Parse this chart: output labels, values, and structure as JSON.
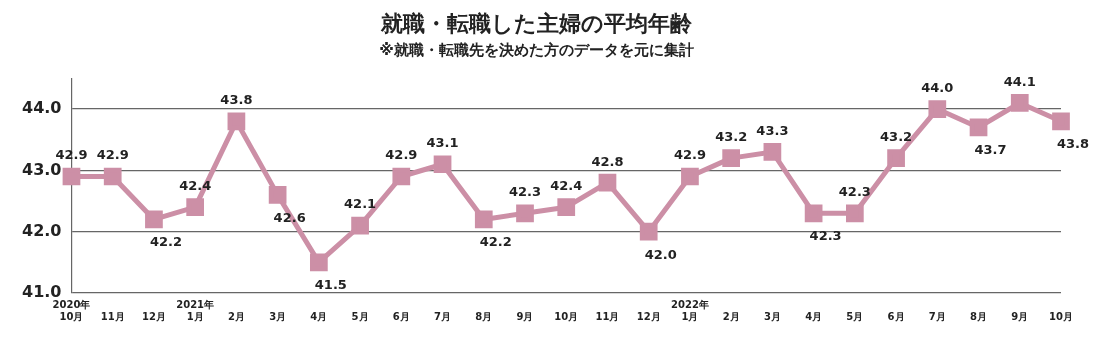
{
  "chart_data": {
    "type": "line",
    "title": "就職・転職した主婦の平均年齢",
    "subtitle": "※就職・転職先を決めた方のデータを元に集計",
    "categories": [
      "2020年\n10月",
      "11月",
      "12月",
      "2021年\n1月",
      "2月",
      "3月",
      "4月",
      "5月",
      "6月",
      "7月",
      "8月",
      "9月",
      "10月",
      "11月",
      "12月",
      "2022年\n1月",
      "2月",
      "3月",
      "4月",
      "5月",
      "6月",
      "7月",
      "8月",
      "9月",
      "10月"
    ],
    "series": [
      {
        "color": "#cc8fa6",
        "values": [
          42.9,
          42.9,
          42.2,
          42.4,
          43.8,
          42.6,
          41.5,
          42.1,
          42.9,
          43.1,
          42.2,
          42.3,
          42.4,
          42.8,
          42.0,
          42.9,
          43.2,
          43.3,
          42.3,
          42.3,
          43.2,
          44.0,
          43.7,
          44.1,
          43.8
        ],
        "value_labels": [
          "42.9",
          "42.9",
          "42.2",
          "42.4",
          "43.8",
          "42.6",
          "41.5",
          "42.1",
          "42.9",
          "43.1",
          "42.2",
          "42.3",
          "42.4",
          "42.8",
          "42.0",
          "42.9",
          "43.2",
          "43.3",
          "42.3",
          "42.3",
          "43.2",
          "44.0",
          "43.7",
          "44.1",
          "43.8"
        ]
      }
    ],
    "ylim": [
      41,
      44.5
    ],
    "yticks": [
      {
        "value": 41,
        "label": "41.0"
      },
      {
        "value": 42,
        "label": "42.0"
      },
      {
        "value": 43,
        "label": "43.0"
      },
      {
        "value": 44,
        "label": "44.0"
      }
    ],
    "grid": "y",
    "marker": "square",
    "line_style": "solid",
    "legend": false
  }
}
